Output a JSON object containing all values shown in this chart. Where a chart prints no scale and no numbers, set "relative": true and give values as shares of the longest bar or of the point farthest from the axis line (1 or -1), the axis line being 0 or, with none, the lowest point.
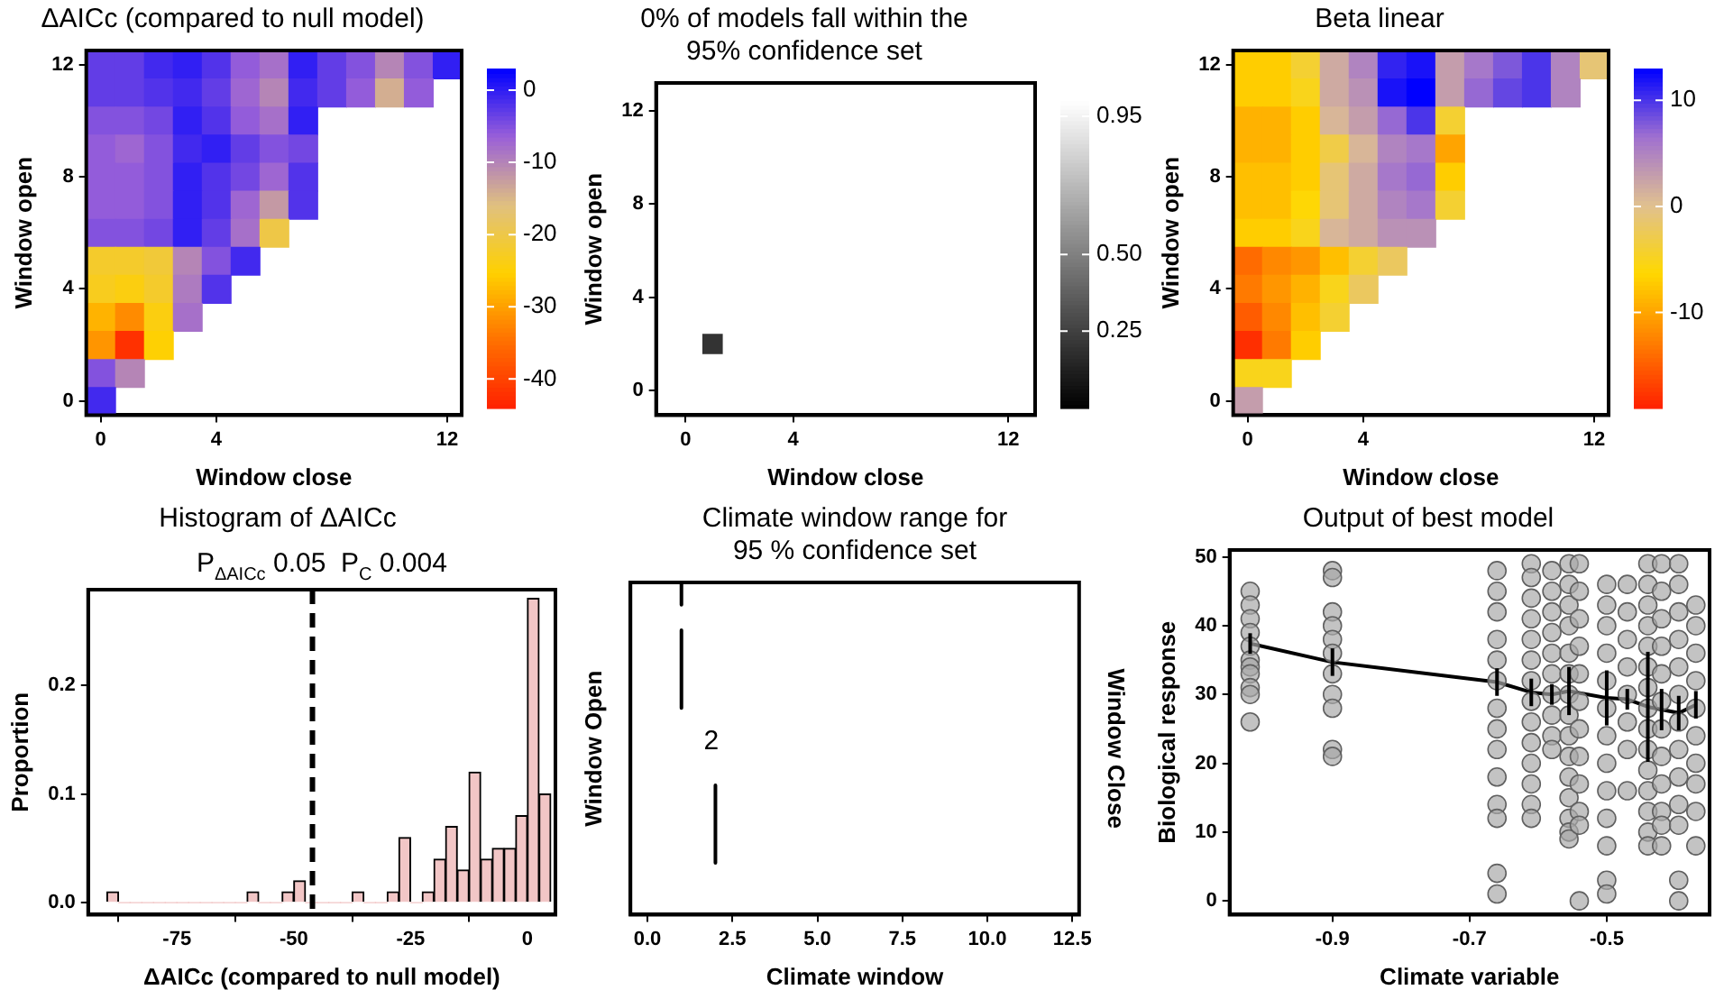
{
  "chart_data": [
    {
      "type": "heatmap",
      "title": "ΔAICc (compared to null model)",
      "xlabel": "Window close",
      "ylabel": "Window open",
      "categories": [
        "0",
        null,
        null,
        null,
        "4",
        null,
        null,
        null,
        null,
        null,
        null,
        null,
        "12"
      ],
      "y_categories": [
        "12",
        null,
        null,
        null,
        "8",
        null,
        null,
        null,
        "4",
        null,
        null,
        null,
        "0"
      ],
      "colors": [
        "#ff2000",
        "#ff7000",
        "#ffd000",
        "#e0c080",
        "#9a60d8",
        "#0000ff"
      ],
      "clim": [
        -44,
        3
      ],
      "cticks": [
        0,
        -10,
        -20,
        -30,
        -40
      ],
      "cells": [
        [
          -3,
          -3,
          -1,
          0,
          -2,
          -6,
          -8,
          0,
          -3,
          -5,
          -10,
          -5,
          0
        ],
        [
          -3,
          -3,
          -2,
          -1,
          -3,
          -7,
          -10,
          -1,
          -3,
          -6,
          -14,
          -6,
          null
        ],
        [
          -5,
          -5,
          -4,
          0,
          -2,
          -6,
          -8,
          0,
          null,
          null,
          null,
          null,
          null
        ],
        [
          -6,
          -7,
          -5,
          -1,
          0,
          -3,
          -5,
          -4,
          null,
          null,
          null,
          null,
          null
        ],
        [
          -6,
          -6,
          -5,
          0,
          -2,
          -4,
          -7,
          -2,
          null,
          null,
          null,
          null,
          null
        ],
        [
          -6,
          -6,
          -5,
          0,
          -2,
          -7,
          -12,
          -2,
          null,
          null,
          null,
          null,
          null
        ],
        [
          -5,
          -5,
          -4,
          0,
          -3,
          -8,
          -20,
          null,
          null,
          null,
          null,
          null,
          null
        ],
        [
          -22,
          -22,
          -21,
          -10,
          -5,
          -1,
          null,
          null,
          null,
          null,
          null,
          null,
          null
        ],
        [
          -23,
          -24,
          -22,
          -9,
          -2,
          null,
          null,
          null,
          null,
          null,
          null,
          null,
          null
        ],
        [
          -28,
          -32,
          -24,
          -8,
          null,
          null,
          null,
          null,
          null,
          null,
          null,
          null,
          null
        ],
        [
          -31,
          -42,
          -25,
          null,
          null,
          null,
          null,
          null,
          null,
          null,
          null,
          null,
          null
        ],
        [
          -5,
          -10,
          null,
          null,
          null,
          null,
          null,
          null,
          null,
          null,
          null,
          null,
          null
        ],
        [
          -1,
          null,
          null,
          null,
          null,
          null,
          null,
          null,
          null,
          null,
          null,
          null,
          null
        ]
      ]
    },
    {
      "type": "scatter",
      "title": "0% of models fall within the\n95% confidence set",
      "xlabel": "Window close",
      "ylabel": "Window open",
      "marker": "square",
      "xlim": [
        -1.1,
        13
      ],
      "xticks": [
        0,
        4,
        12
      ],
      "ylim": [
        -1.05,
        13.2
      ],
      "yticks": [
        0,
        4,
        8,
        12
      ],
      "colors": [
        "#000000",
        "#ffffff"
      ],
      "clim": [
        0,
        1
      ],
      "cticks": [
        {
          "value": 0.95,
          "label": "0.95"
        },
        {
          "value": 0.5,
          "label": "0.50"
        },
        {
          "value": 0.25,
          "label": "0.25"
        }
      ],
      "series": [
        {
          "x": [
            1
          ],
          "values": [
            2
          ],
          "cvalues": [
            0.2
          ]
        }
      ]
    },
    {
      "type": "heatmap",
      "title": "Beta linear",
      "xlabel": "Window close",
      "ylabel": "Window open",
      "categories": [
        "0",
        null,
        null,
        null,
        "4",
        null,
        null,
        null,
        null,
        null,
        null,
        null,
        "12"
      ],
      "y_categories": [
        "12",
        null,
        null,
        null,
        "8",
        null,
        null,
        null,
        "4",
        null,
        null,
        null,
        "0"
      ],
      "colors": [
        "#ff2000",
        "#ff8000",
        "#ffd800",
        "#e0c090",
        "#a070d0",
        "#0000ff"
      ],
      "clim": [
        -19,
        13
      ],
      "cticks": [
        10,
        0,
        -10
      ],
      "cells": [
        [
          -7,
          -7,
          -4,
          2,
          5,
          11,
          12,
          3,
          6,
          8,
          10,
          5,
          -1
        ],
        [
          -7,
          -7,
          -5,
          2,
          4,
          12,
          13,
          3,
          7,
          9,
          10,
          5,
          null
        ],
        [
          -9,
          -9,
          -7,
          1,
          3,
          7,
          10,
          -4,
          null,
          null,
          null,
          null,
          null
        ],
        [
          -9,
          -9,
          -7,
          -3,
          1,
          5,
          6,
          -10,
          null,
          null,
          null,
          null,
          null
        ],
        [
          -8,
          -8,
          -7,
          -1,
          2,
          6,
          7,
          -7,
          null,
          null,
          null,
          null,
          null
        ],
        [
          -8,
          -8,
          -6,
          -1,
          2,
          5,
          6,
          -4,
          null,
          null,
          null,
          null,
          null
        ],
        [
          -7,
          -7,
          -5,
          1,
          2,
          4,
          4,
          null,
          null,
          null,
          null,
          null,
          null
        ],
        [
          -14,
          -12,
          -11,
          -8,
          -4,
          -2,
          null,
          null,
          null,
          null,
          null,
          null,
          null
        ],
        [
          -13,
          -11,
          -9,
          -5,
          -2,
          null,
          null,
          null,
          null,
          null,
          null,
          null,
          null
        ],
        [
          -15,
          -12,
          -8,
          -4,
          null,
          null,
          null,
          null,
          null,
          null,
          null,
          null,
          null
        ],
        [
          -18,
          -13,
          -7,
          null,
          null,
          null,
          null,
          null,
          null,
          null,
          null,
          null,
          null
        ],
        [
          -5,
          -5,
          null,
          null,
          null,
          null,
          null,
          null,
          null,
          null,
          null,
          null,
          null
        ],
        [
          3,
          null,
          null,
          null,
          null,
          null,
          null,
          null,
          null,
          null,
          null,
          null,
          null
        ]
      ]
    },
    {
      "type": "histogram",
      "title": "Histogram of ΔAICc",
      "subtitle": "P$_{ΔAICc}$ 0.05  P$_{C}$ 0.004",
      "xlabel": "ΔAICc (compared to null model)",
      "ylabel": "Proportion",
      "color": "#f2c6c6",
      "bins": [
        -90,
        -87.5,
        -85,
        -82.5,
        -80,
        -77.5,
        -75,
        -72.5,
        -70,
        -67.5,
        -65,
        -62.5,
        -60,
        -57.5,
        -55,
        -52.5,
        -50,
        -47.5,
        -45,
        -42.5,
        -40,
        -37.5,
        -35,
        -32.5,
        -30,
        -27.5,
        -25,
        -22.5,
        -20,
        -17.5,
        -15,
        -12.5,
        -10,
        -7.5,
        -5,
        -2.5,
        0,
        2.5,
        5
      ],
      "values": [
        0.01,
        0,
        0,
        0,
        0,
        0,
        0,
        0,
        0,
        0,
        0,
        0,
        0.01,
        0,
        0,
        0.01,
        0.02,
        0,
        0,
        0,
        0,
        0.01,
        0,
        0,
        0.01,
        0.06,
        0,
        0.01,
        0.04,
        0.07,
        0.03,
        0.12,
        0.04,
        0.05,
        0.05,
        0.08,
        0.28,
        0.1
      ],
      "xlim": [
        -94,
        6
      ],
      "xticks": [
        -75,
        -50,
        -25,
        0
      ],
      "ylim": [
        -0.011,
        0.288
      ],
      "yticks": [
        {
          "value": 0,
          "label": "0.0"
        },
        {
          "value": 0.1,
          "label": "0.1"
        },
        {
          "value": 0.2,
          "label": "0.2"
        }
      ],
      "ref_lines": [
        {
          "axis": "x",
          "value": -46,
          "color": "#000000",
          "line_style": "dashed"
        }
      ]
    },
    {
      "type": "line",
      "title": "Climate window range for\n95 % confidence set",
      "xlabel": "Climate window",
      "ylabel": "Window Open",
      "y2label": "Window Close",
      "relative": true,
      "marker": "none",
      "xlim": [
        -0.5,
        12.7
      ],
      "xticks": [
        {
          "value": 0,
          "label": "0.0"
        },
        {
          "value": 2.5,
          "label": "2.5"
        },
        {
          "value": 5,
          "label": "5.0"
        },
        {
          "value": 7.5,
          "label": "7.5"
        },
        {
          "value": 10,
          "label": "10.0"
        },
        {
          "value": 12.5,
          "label": "12.5"
        }
      ],
      "series": [
        {
          "color": "#000000",
          "x": [
            1,
            1
          ],
          "values": [
            1,
            0.933
          ]
        },
        {
          "color": "#000000",
          "x": [
            1,
            1
          ],
          "values": [
            0.856,
            0.622
          ]
        },
        {
          "color": "#000000",
          "x": [
            2,
            2
          ],
          "values": [
            0.389,
            0.156
          ]
        }
      ],
      "annotations": [
        "2"
      ]
    },
    {
      "type": "scatter",
      "title": "Output of best model",
      "xlabel": "Climate variable",
      "ylabel": "Biological response",
      "marker": "circle",
      "xlim": [
        -1.05,
        -0.35
      ],
      "xticks": [
        -0.9,
        -0.7,
        -0.5
      ],
      "ylim": [
        -2,
        51
      ],
      "yticks": [
        0,
        10,
        20,
        30,
        40,
        50
      ],
      "series": [
        {
          "color": "#a8a8a8",
          "x": [
            -1.02,
            -1.02,
            -1.02,
            -1.02,
            -1.02,
            -1.02,
            -1.02,
            -1.02,
            -1.02,
            -1.02,
            -1.02,
            -0.9,
            -0.9,
            -0.9,
            -0.9,
            -0.9,
            -0.9,
            -0.9,
            -0.9,
            -0.9,
            -0.9,
            -0.9,
            -0.66,
            -0.66,
            -0.66,
            -0.66,
            -0.66,
            -0.66,
            -0.66,
            -0.66,
            -0.66,
            -0.66,
            -0.66,
            -0.66,
            -0.66,
            -0.66,
            -0.61,
            -0.61,
            -0.61,
            -0.61,
            -0.61,
            -0.61,
            -0.61,
            -0.61,
            -0.61,
            -0.61,
            -0.61,
            -0.61,
            -0.61,
            -0.61,
            -0.58,
            -0.58,
            -0.58,
            -0.58,
            -0.58,
            -0.58,
            -0.58,
            -0.58,
            -0.58,
            -0.58,
            -0.555,
            -0.555,
            -0.555,
            -0.555,
            -0.555,
            -0.555,
            -0.555,
            -0.555,
            -0.555,
            -0.555,
            -0.555,
            -0.555,
            -0.555,
            -0.555,
            -0.555,
            -0.54,
            -0.54,
            -0.54,
            -0.54,
            -0.54,
            -0.54,
            -0.54,
            -0.54,
            -0.54,
            -0.54,
            -0.54,
            -0.54,
            -0.5,
            -0.5,
            -0.5,
            -0.5,
            -0.5,
            -0.5,
            -0.5,
            -0.5,
            -0.5,
            -0.5,
            -0.5,
            -0.5,
            -0.5,
            -0.47,
            -0.47,
            -0.47,
            -0.47,
            -0.47,
            -0.47,
            -0.47,
            -0.47,
            -0.44,
            -0.44,
            -0.44,
            -0.44,
            -0.44,
            -0.44,
            -0.44,
            -0.44,
            -0.44,
            -0.44,
            -0.44,
            -0.44,
            -0.44,
            -0.44,
            -0.44,
            -0.42,
            -0.42,
            -0.42,
            -0.42,
            -0.42,
            -0.42,
            -0.42,
            -0.42,
            -0.42,
            -0.42,
            -0.42,
            -0.42,
            -0.395,
            -0.395,
            -0.395,
            -0.395,
            -0.395,
            -0.395,
            -0.395,
            -0.395,
            -0.395,
            -0.395,
            -0.395,
            -0.395,
            -0.395,
            -0.37,
            -0.37,
            -0.37,
            -0.37,
            -0.37,
            -0.37,
            -0.37,
            -0.37,
            -0.37,
            -0.37
          ],
          "values": [
            45,
            43,
            41,
            39,
            37,
            35,
            34,
            33,
            31,
            30,
            26,
            48,
            47,
            42,
            40,
            38,
            36,
            33,
            30,
            28,
            22,
            21,
            48,
            45,
            42,
            38,
            35,
            32,
            28,
            25,
            22,
            18,
            14,
            12,
            4,
            1,
            49,
            47,
            44,
            41,
            38,
            35,
            32,
            29,
            26,
            23,
            20,
            17,
            14,
            12,
            48,
            45,
            42,
            39,
            36,
            33,
            30,
            27,
            24,
            22,
            49,
            46,
            43,
            40,
            36,
            33,
            30,
            27,
            24,
            21,
            18,
            15,
            12,
            10,
            9,
            49,
            45,
            41,
            37,
            33,
            29,
            25,
            21,
            17,
            13,
            11,
            0,
            46,
            43,
            40,
            36,
            32,
            28,
            24,
            20,
            16,
            12,
            8,
            3,
            1,
            46,
            42,
            38,
            34,
            30,
            26,
            22,
            16,
            49,
            46,
            43,
            40,
            37,
            34,
            31,
            28,
            25,
            22,
            19,
            16,
            13,
            10,
            8,
            49,
            45,
            41,
            37,
            33,
            29,
            25,
            21,
            17,
            13,
            11,
            8,
            49,
            46,
            42,
            38,
            34,
            30,
            26,
            22,
            18,
            14,
            11,
            3,
            0,
            43,
            40,
            36,
            32,
            28,
            24,
            20,
            17,
            13,
            8
          ]
        },
        {
          "type": "line",
          "marker": "none",
          "color": "#000000",
          "x": [
            -1.02,
            -0.9,
            -0.66,
            -0.61,
            -0.58,
            -0.555,
            -0.5,
            -0.47,
            -0.44,
            -0.42,
            -0.395,
            -0.37
          ],
          "values": [
            37.4,
            34.7,
            31.8,
            30.3,
            30,
            30.5,
            29.5,
            29.3,
            28.2,
            27.8,
            27.3,
            28.5
          ],
          "errors": [
            1.5,
            2,
            2,
            2,
            1.5,
            3.5,
            4,
            1.5,
            8,
            3,
            2.5,
            2
          ]
        }
      ]
    }
  ]
}
